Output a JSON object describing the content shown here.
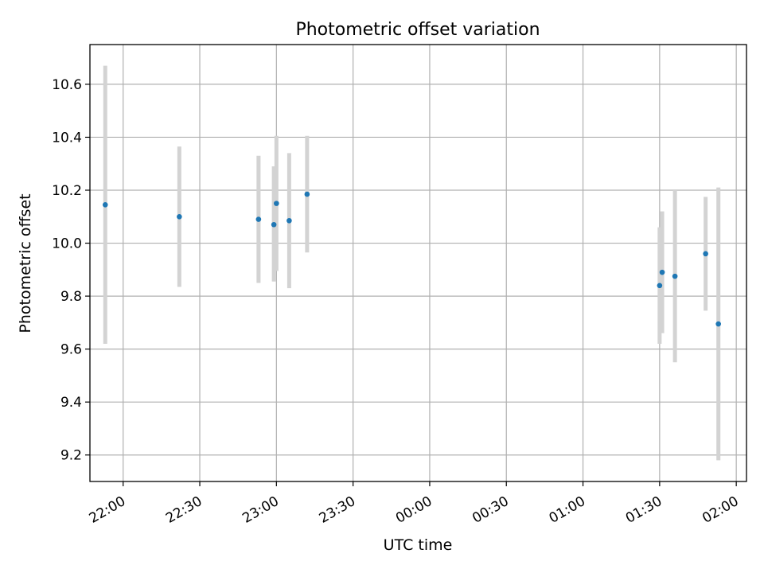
{
  "chart_data": {
    "type": "scatter",
    "title": "Photometric offset variation",
    "xlabel": "UTC time",
    "ylabel": "Photometric offset",
    "x_axis_kind": "time",
    "xlim": [
      "21:47",
      "02:04"
    ],
    "ylim": [
      9.1,
      10.75
    ],
    "grid": true,
    "x_ticks": [
      "22:00",
      "22:30",
      "23:00",
      "23:30",
      "00:00",
      "00:30",
      "01:00",
      "01:30",
      "02:00"
    ],
    "y_ticks": [
      "9.2",
      "9.4",
      "9.6",
      "9.8",
      "10.0",
      "10.2",
      "10.4",
      "10.6"
    ],
    "colors": {
      "points": "#1f77b4",
      "error_bars": "#d3d3d3",
      "grid": "#b0b0b0"
    },
    "points": [
      {
        "time": "21:53",
        "y": 10.145,
        "y_low": 9.62,
        "y_high": 10.67
      },
      {
        "time": "22:22",
        "y": 10.1,
        "y_low": 9.835,
        "y_high": 10.365
      },
      {
        "time": "22:53",
        "y": 10.09,
        "y_low": 9.85,
        "y_high": 10.33
      },
      {
        "time": "22:59",
        "y": 10.07,
        "y_low": 9.855,
        "y_high": 10.29
      },
      {
        "time": "23:05",
        "y": 10.085,
        "y_low": 9.83,
        "y_high": 10.34
      },
      {
        "time": "23:00",
        "y": 10.15,
        "y_low": 9.895,
        "y_high": 10.405
      },
      {
        "time": "23:12",
        "y": 10.185,
        "y_low": 9.965,
        "y_high": 10.405
      },
      {
        "time": "01:30",
        "y": 9.84,
        "y_low": 9.62,
        "y_high": 10.06
      },
      {
        "time": "01:31",
        "y": 9.89,
        "y_low": 9.66,
        "y_high": 10.12
      },
      {
        "time": "01:36",
        "y": 9.875,
        "y_low": 9.55,
        "y_high": 10.2
      },
      {
        "time": "01:48",
        "y": 9.96,
        "y_low": 9.745,
        "y_high": 10.175
      },
      {
        "time": "01:53",
        "y": 9.695,
        "y_low": 9.18,
        "y_high": 10.21
      }
    ]
  }
}
